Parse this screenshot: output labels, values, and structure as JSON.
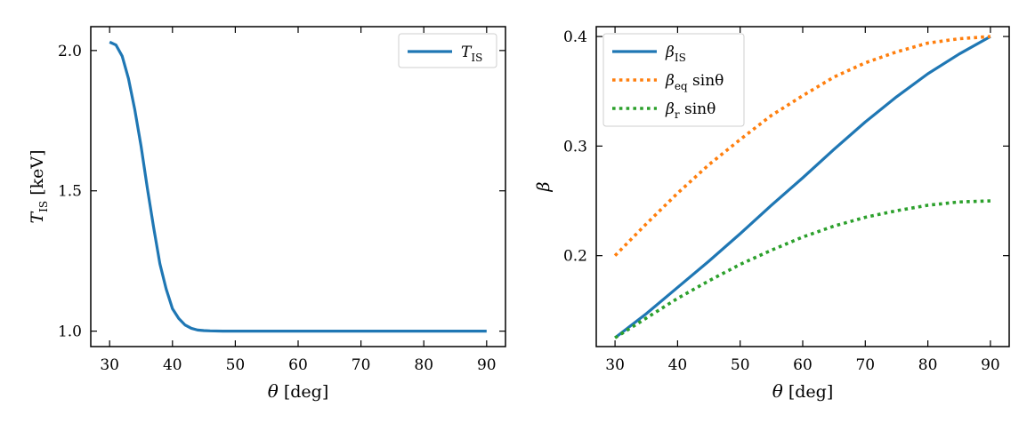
{
  "chart_data": [
    {
      "type": "line",
      "panel": "left",
      "xlabel": "θ [deg]",
      "ylabel": "T_IS [keV]",
      "ylabel_main": "T",
      "ylabel_sub": "IS",
      "ylabel_unit": " [keV]",
      "xlim": [
        27,
        93
      ],
      "ylim": [
        0.945,
        2.085
      ],
      "xticks": [
        30,
        40,
        50,
        60,
        70,
        80,
        90
      ],
      "xtick_labels": [
        "30",
        "40",
        "50",
        "60",
        "70",
        "80",
        "90"
      ],
      "yticks": [
        1.0,
        1.5,
        2.0
      ],
      "ytick_labels": [
        "1.0",
        "1.5",
        "2.0"
      ],
      "legend_position": "top-right",
      "series": [
        {
          "name": "T_IS",
          "label_main": "T",
          "label_sub": "IS",
          "color": "#1f77b4",
          "style": "solid",
          "x": [
            30,
            31,
            32,
            33,
            34,
            35,
            36,
            37,
            38,
            39,
            40,
            41,
            42,
            43,
            44,
            45,
            46,
            48,
            50,
            60,
            70,
            80,
            90
          ],
          "y": [
            2.03,
            2.02,
            1.98,
            1.9,
            1.79,
            1.66,
            1.51,
            1.37,
            1.24,
            1.15,
            1.08,
            1.045,
            1.022,
            1.01,
            1.004,
            1.002,
            1.001,
            1.0,
            1.0,
            1.0,
            1.0,
            1.0,
            1.0
          ]
        }
      ]
    },
    {
      "type": "line",
      "panel": "right",
      "xlabel": "θ [deg]",
      "ylabel": "β",
      "xlim": [
        27,
        93
      ],
      "ylim": [
        0.117,
        0.409
      ],
      "xticks": [
        30,
        40,
        50,
        60,
        70,
        80,
        90
      ],
      "xtick_labels": [
        "30",
        "40",
        "50",
        "60",
        "70",
        "80",
        "90"
      ],
      "yticks": [
        0.2,
        0.3,
        0.4
      ],
      "ytick_labels": [
        "0.2",
        "0.3",
        "0.4"
      ],
      "legend_position": "top-left",
      "series": [
        {
          "name": "β_IS",
          "label_main": "β",
          "label_sub": "IS",
          "label_tail": "",
          "color": "#1f77b4",
          "style": "solid",
          "x": [
            30,
            35,
            40,
            45,
            50,
            55,
            60,
            65,
            70,
            75,
            80,
            85,
            90
          ],
          "y": [
            0.125,
            0.147,
            0.171,
            0.195,
            0.22,
            0.246,
            0.271,
            0.297,
            0.322,
            0.345,
            0.366,
            0.384,
            0.4
          ]
        },
        {
          "name": "β_eq sinθ",
          "label_main": "β",
          "label_sub": "eq",
          "label_tail": " sinθ",
          "color": "#ff7f0e",
          "style": "dotted",
          "x": [
            30,
            35,
            40,
            45,
            50,
            55,
            60,
            65,
            70,
            75,
            80,
            85,
            90
          ],
          "y": [
            0.2,
            0.229,
            0.257,
            0.283,
            0.306,
            0.328,
            0.346,
            0.363,
            0.376,
            0.386,
            0.394,
            0.398,
            0.4
          ]
        },
        {
          "name": "β_r sinθ",
          "label_main": "β",
          "label_sub": "r",
          "label_tail": " sinθ",
          "color": "#2ca02c",
          "style": "dotted",
          "x": [
            30,
            35,
            40,
            45,
            50,
            55,
            60,
            65,
            70,
            75,
            80,
            85,
            90
          ],
          "y": [
            0.125,
            0.143,
            0.161,
            0.177,
            0.192,
            0.205,
            0.217,
            0.227,
            0.235,
            0.241,
            0.246,
            0.249,
            0.25
          ]
        }
      ]
    }
  ]
}
